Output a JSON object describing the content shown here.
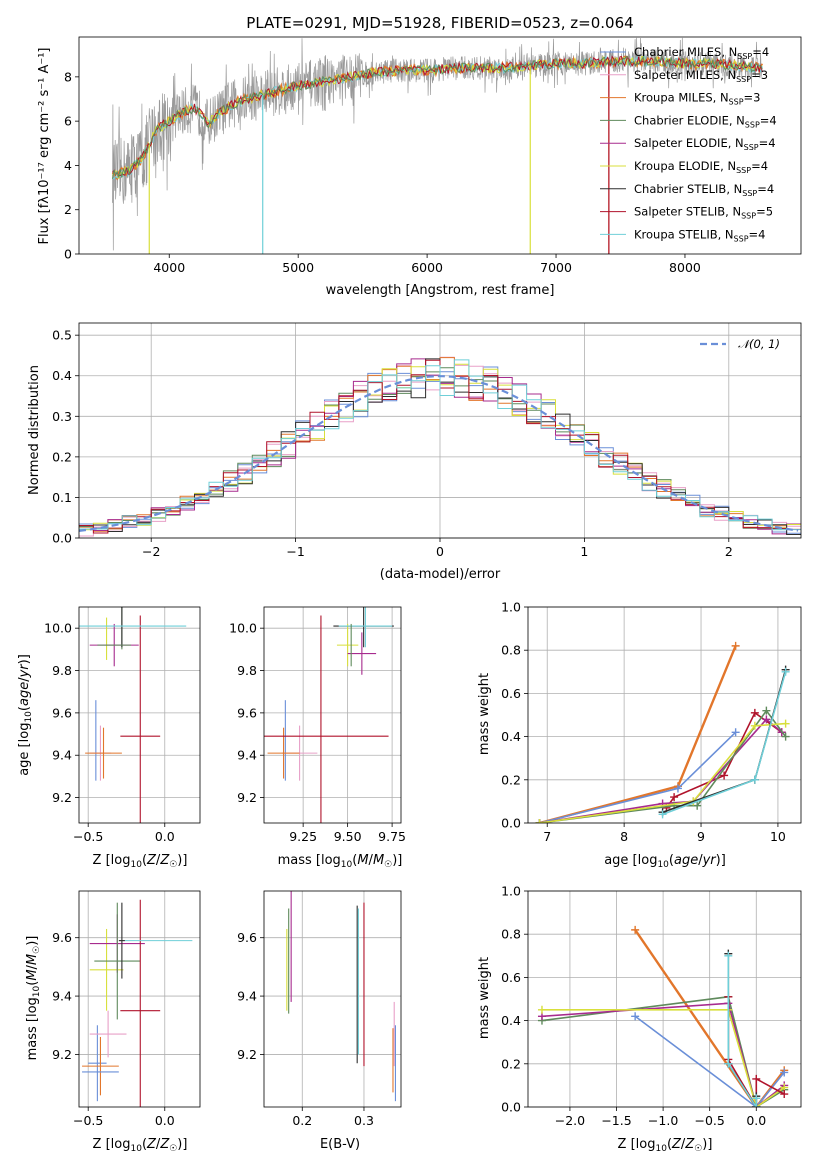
{
  "colors": [
    "#6a8fd8",
    "#e2762b",
    "#5f8a5c",
    "#a72b8e",
    "#d8df3b",
    "#2e2e2e",
    "#b0132b",
    "#6fcfd8",
    "#9a9a9a",
    "#e8a0c8"
  ],
  "chart_data": [
    {
      "type": "line",
      "title": "PLATE=0291, MJD=51928, FIBERID=0523, z=0.064",
      "xlabel": "wavelength [Angstrom, rest frame]",
      "ylabel": "Flux [f$_\\lambda$10$^{-17}$ erg cm$^{-2}$ s$^{-1}$ A$^{-1}$]",
      "ylabel_display": "Flux [fλ10⁻¹⁷ erg cm⁻² s⁻¹ A⁻¹]",
      "xlim": [
        3300,
        8900
      ],
      "ylim": [
        0,
        9.8
      ],
      "xticks": [
        4000,
        5000,
        6000,
        7000,
        8000
      ],
      "yticks": [
        0,
        2,
        4,
        6,
        8
      ],
      "grid": false,
      "legend_position": "top-right",
      "series": [
        {
          "name": "Chabrier MILES, N_SSP=4",
          "label_main": "Chabrier MILES, N",
          "label_sub": "SSP",
          "label_end": "=4",
          "color": "#6a8fd8"
        },
        {
          "name": "Salpeter MILES, N_SSP=3",
          "label_main": "Salpeter MILES, N",
          "label_sub": "SSP",
          "label_end": "=3",
          "color": "#e8a0c8"
        },
        {
          "name": "Kroupa MILES, N_SSP=3",
          "label_main": "Kroupa MILES, N",
          "label_sub": "SSP",
          "label_end": "=3",
          "color": "#e2762b"
        },
        {
          "name": "Chabrier ELODIE, N_SSP=4",
          "label_main": "Chabrier ELODIE, N",
          "label_sub": "SSP",
          "label_end": "=4",
          "color": "#5f8a5c"
        },
        {
          "name": "Salpeter ELODIE, N_SSP=4",
          "label_main": "Salpeter ELODIE, N",
          "label_sub": "SSP",
          "label_end": "=4",
          "color": "#a72b8e"
        },
        {
          "name": "Kroupa ELODIE, N_SSP=4",
          "label_main": "Kroupa ELODIE, N",
          "label_sub": "SSP",
          "label_end": "=4",
          "color": "#d8df3b"
        },
        {
          "name": "Chabrier STELIB, N_SSP=4",
          "label_main": "Chabrier STELIB, N",
          "label_sub": "SSP",
          "label_end": "=4",
          "color": "#2e2e2e"
        },
        {
          "name": "Salpeter STELIB, N_SSP=5",
          "label_main": "Salpeter STELIB, N",
          "label_sub": "SSP",
          "label_end": "=5",
          "color": "#b0132b"
        },
        {
          "name": "Kroupa STELIB, N_SSP=4",
          "label_main": "Kroupa STELIB, N",
          "label_sub": "SSP",
          "label_end": "=4",
          "color": "#6fcfd8"
        }
      ],
      "continuum_shape": {
        "x": [
          3600,
          3700,
          3800,
          3900,
          4000,
          4100,
          4200,
          4300,
          4400,
          4500,
          4600,
          4800,
          5000,
          5200,
          5400,
          5600,
          5800,
          6000,
          6200,
          6400,
          6600,
          6800,
          7000,
          7200,
          7400,
          7600,
          7800,
          8000,
          8200,
          8400,
          8600
        ],
        "y": [
          3.6,
          3.8,
          4.4,
          5.6,
          6.0,
          6.4,
          6.6,
          5.9,
          6.4,
          6.8,
          7.0,
          7.3,
          7.6,
          7.8,
          8.0,
          8.2,
          8.3,
          8.3,
          8.4,
          8.4,
          8.4,
          8.5,
          8.6,
          8.6,
          8.7,
          8.7,
          8.7,
          8.6,
          8.6,
          8.5,
          8.4
        ]
      }
    },
    {
      "type": "line",
      "title": "",
      "xlabel": "(data-model)/error",
      "ylabel": "Normed distribution",
      "xlim": [
        -2.5,
        2.5
      ],
      "ylim": [
        0,
        0.53
      ],
      "xticks": [
        -2,
        -1,
        0,
        1,
        2
      ],
      "yticks": [
        0.0,
        0.1,
        0.2,
        0.3,
        0.4,
        0.5
      ],
      "grid": true,
      "legend_position": "top-right",
      "legend": "N(0,1)",
      "legend_display": "𝒩(0, 1)",
      "gaussian": {
        "mean": 0,
        "sigma": 1,
        "color": "#6a8fd8",
        "style": "dashed"
      }
    },
    {
      "type": "scatter",
      "title": "",
      "xlabel": "Z [log10(Z/Z☉)]",
      "ylabel": "age  [log10(age/yr)]",
      "xlim": [
        -0.56,
        0.23
      ],
      "ylim": [
        9.08,
        10.1
      ],
      "xticks": [
        -0.5,
        0.0
      ],
      "yticks": [
        9.2,
        9.4,
        9.6,
        9.8,
        10.0
      ],
      "grid": true,
      "errorbars": [
        {
          "x": -0.45,
          "y": 9.47,
          "xerr": 0,
          "yerr": 0.19,
          "color": "#6a8fd8"
        },
        {
          "x": -0.42,
          "y": 9.41,
          "xerr": 0.07,
          "yerr": 0.13,
          "color": "#e8a0c8"
        },
        {
          "x": -0.4,
          "y": 9.41,
          "xerr": 0.12,
          "yerr": 0.12,
          "color": "#e2762b"
        },
        {
          "x": -0.38,
          "y": 9.95,
          "xerr": 0.0,
          "yerr": 0.1,
          "color": "#d8df3b"
        },
        {
          "x": -0.33,
          "y": 9.92,
          "xerr": 0.16,
          "yerr": 0.1,
          "color": "#a72b8e"
        },
        {
          "x": -0.28,
          "y": 10.0,
          "xerr": 0.0,
          "yerr": 0.1,
          "color": "#5f8a5c"
        },
        {
          "x": -0.28,
          "y": 10.01,
          "xerr": 0.0,
          "yerr": 0.1,
          "color": "#2e2e2e"
        },
        {
          "x": -0.16,
          "y": 9.49,
          "xerr": 0.13,
          "yerr": 0.57,
          "color": "#b0132b"
        },
        {
          "x": -0.26,
          "y": 10.01,
          "xerr": 0.4,
          "yerr": 0.0,
          "color": "#6fcfd8"
        },
        {
          "x": -0.33,
          "y": 9.92,
          "xerr": 0.11,
          "yerr": 0.0,
          "color": "#5f8a5c"
        }
      ]
    },
    {
      "type": "scatter",
      "title": "",
      "xlabel": "mass [log10(M/M☉)]",
      "ylabel": "",
      "xlim": [
        9.03,
        9.8
      ],
      "ylim": [
        9.08,
        10.1
      ],
      "xticks": [
        9.25,
        9.5,
        9.75
      ],
      "yticks": [
        9.2,
        9.4,
        9.6,
        9.8,
        10.0
      ],
      "grid": true,
      "errorbars": [
        {
          "x": 9.15,
          "y": 9.47,
          "xerr": 0,
          "yerr": 0.19,
          "color": "#6a8fd8"
        },
        {
          "x": 9.23,
          "y": 9.41,
          "xerr": 0.1,
          "yerr": 0.13,
          "color": "#e8a0c8"
        },
        {
          "x": 9.14,
          "y": 9.41,
          "xerr": 0.09,
          "yerr": 0.12,
          "color": "#e2762b"
        },
        {
          "x": 9.5,
          "y": 9.92,
          "xerr": 0.06,
          "yerr": 0.1,
          "color": "#d8df3b"
        },
        {
          "x": 9.58,
          "y": 9.88,
          "xerr": 0.08,
          "yerr": 0.1,
          "color": "#a72b8e"
        },
        {
          "x": 9.59,
          "y": 10.01,
          "xerr": 0.17,
          "yerr": 0.1,
          "color": "#2e2e2e"
        },
        {
          "x": 9.35,
          "y": 9.49,
          "xerr": 0.38,
          "yerr": 0.57,
          "color": "#b0132b"
        },
        {
          "x": 9.6,
          "y": 10.01,
          "xerr": 0.15,
          "yerr": 0.1,
          "color": "#6fcfd8"
        },
        {
          "x": 9.52,
          "y": 9.92,
          "xerr": 0.0,
          "yerr": 0.1,
          "color": "#5f8a5c"
        }
      ]
    },
    {
      "type": "line",
      "title": "",
      "xlabel": "age  [log10(age/yr)]",
      "ylabel": "mass weight",
      "xlim": [
        6.75,
        10.3
      ],
      "ylim": [
        0,
        1.0
      ],
      "xticks": [
        7,
        8,
        9,
        10
      ],
      "yticks": [
        0.0,
        0.2,
        0.4,
        0.6,
        0.8,
        1.0
      ],
      "grid": true,
      "series": [
        {
          "color": "#e2762b",
          "x": [
            6.9,
            8.7,
            9.45
          ],
          "y": [
            0.0,
            0.17,
            0.82
          ]
        },
        {
          "color": "#6a8fd8",
          "x": [
            6.9,
            8.7,
            9.45
          ],
          "y": [
            0.0,
            0.16,
            0.42
          ]
        },
        {
          "color": "#b0132b",
          "x": [
            8.55,
            8.65,
            9.3,
            9.7,
            10.05
          ],
          "y": [
            0.07,
            0.12,
            0.22,
            0.51,
            0.42
          ]
        },
        {
          "color": "#a72b8e",
          "x": [
            6.9,
            8.5,
            8.9,
            9.85,
            10.05
          ],
          "y": [
            0.0,
            0.09,
            0.1,
            0.48,
            0.42
          ]
        },
        {
          "color": "#5f8a5c",
          "x": [
            6.9,
            8.65,
            8.95,
            9.85,
            10.1
          ],
          "y": [
            0.0,
            0.08,
            0.08,
            0.52,
            0.4
          ]
        },
        {
          "color": "#d8df3b",
          "x": [
            6.9,
            8.9,
            9.7,
            10.1
          ],
          "y": [
            0.0,
            0.1,
            0.45,
            0.46
          ]
        },
        {
          "color": "#2e2e2e",
          "x": [
            8.5,
            9.7,
            10.1
          ],
          "y": [
            0.05,
            0.2,
            0.71
          ]
        },
        {
          "color": "#6fcfd8",
          "x": [
            8.5,
            9.7,
            10.1
          ],
          "y": [
            0.04,
            0.2,
            0.7
          ]
        }
      ]
    },
    {
      "type": "scatter",
      "title": "",
      "xlabel": "Z [log10(Z/Z☉)]",
      "ylabel": "mass [log10(M/M☉)]",
      "xlim": [
        -0.56,
        0.23
      ],
      "ylim": [
        9.02,
        9.76
      ],
      "xticks": [
        -0.5,
        0.0
      ],
      "yticks": [
        9.2,
        9.4,
        9.6
      ],
      "grid": true,
      "errorbars": [
        {
          "x": -0.44,
          "y": 9.17,
          "xerr": 0.06,
          "yerr": 0.13,
          "color": "#6a8fd8"
        },
        {
          "x": -0.37,
          "y": 9.27,
          "xerr": 0.12,
          "yerr": 0.08,
          "color": "#e8a0c8"
        },
        {
          "x": -0.42,
          "y": 9.16,
          "xerr": 0.12,
          "yerr": 0.1,
          "color": "#e2762b"
        },
        {
          "x": -0.38,
          "y": 9.49,
          "xerr": 0.11,
          "yerr": 0.14,
          "color": "#d8df3b"
        },
        {
          "x": -0.31,
          "y": 9.58,
          "xerr": 0.18,
          "yerr": 0.1,
          "color": "#a72b8e"
        },
        {
          "x": -0.31,
          "y": 9.52,
          "xerr": 0.15,
          "yerr": 0.2,
          "color": "#5f8a5c"
        },
        {
          "x": -0.28,
          "y": 9.59,
          "xerr": 0.02,
          "yerr": 0.13,
          "color": "#2e2e2e"
        },
        {
          "x": -0.16,
          "y": 9.35,
          "xerr": 0.13,
          "yerr": 0.38,
          "color": "#b0132b"
        },
        {
          "x": -0.04,
          "y": 9.59,
          "xerr": 0.22,
          "yerr": 0.0,
          "color": "#6fcfd8"
        },
        {
          "x": -0.42,
          "y": 9.14,
          "xerr": 0.12,
          "yerr": 0.0,
          "color": "#6a8fd8"
        }
      ]
    },
    {
      "type": "scatter",
      "title": "",
      "xlabel": "E(B-V)",
      "ylabel": "",
      "xlim": [
        0.138,
        0.36
      ],
      "ylim": [
        9.02,
        9.76
      ],
      "xticks": [
        0.2,
        0.3
      ],
      "yticks": [
        9.2,
        9.4,
        9.6
      ],
      "grid": true,
      "errorbars": [
        {
          "x": 0.175,
          "y": 9.49,
          "yerr": 0.14,
          "color": "#d8df3b"
        },
        {
          "x": 0.178,
          "y": 9.52,
          "yerr": 0.18,
          "color": "#5f8a5c"
        },
        {
          "x": 0.182,
          "y": 9.58,
          "yerr": 0.2,
          "color": "#a72b8e"
        },
        {
          "x": 0.289,
          "y": 9.44,
          "yerr": 0.27,
          "color": "#2e2e2e"
        },
        {
          "x": 0.291,
          "y": 9.45,
          "yerr": 0.25,
          "color": "#6fcfd8"
        },
        {
          "x": 0.3,
          "y": 9.44,
          "yerr": 0.28,
          "color": "#b0132b"
        },
        {
          "x": 0.347,
          "y": 9.18,
          "yerr": 0.11,
          "color": "#e2762b"
        },
        {
          "x": 0.349,
          "y": 9.27,
          "yerr": 0.11,
          "color": "#e8a0c8"
        },
        {
          "x": 0.351,
          "y": 9.17,
          "yerr": 0.13,
          "color": "#6a8fd8"
        }
      ]
    },
    {
      "type": "line",
      "title": "",
      "xlabel": "Z [log10(Z/Z☉)]",
      "ylabel": "mass weight",
      "xlim": [
        -2.45,
        0.48
      ],
      "ylim": [
        0,
        1.0
      ],
      "xticks": [
        -2.0,
        -1.5,
        -1.0,
        -0.5,
        0.0
      ],
      "yticks": [
        0.0,
        0.2,
        0.4,
        0.6,
        0.8,
        1.0
      ],
      "grid": true,
      "series": [
        {
          "color": "#e2762b",
          "x": [
            -1.3,
            0.0,
            0.3
          ],
          "y": [
            0.82,
            0.0,
            0.17
          ]
        },
        {
          "color": "#6a8fd8",
          "x": [
            -1.3,
            0.0,
            0.3
          ],
          "y": [
            0.42,
            0.0,
            0.16
          ]
        },
        {
          "color": "#5f8a5c",
          "x": [
            -2.3,
            -0.3,
            0.0,
            0.3
          ],
          "y": [
            0.4,
            0.51,
            0.0,
            0.08
          ]
        },
        {
          "color": "#a72b8e",
          "x": [
            -2.3,
            -0.3,
            0.0,
            0.3
          ],
          "y": [
            0.42,
            0.48,
            0.0,
            0.1
          ]
        },
        {
          "color": "#d8df3b",
          "x": [
            -2.3,
            -0.3,
            0.0,
            0.3
          ],
          "y": [
            0.45,
            0.45,
            0.0,
            0.09
          ]
        },
        {
          "color": "#b0132b",
          "x": [
            -0.3,
            -0.3,
            0.0,
            0.0,
            0.3
          ],
          "y": [
            0.51,
            0.22,
            0.0,
            0.13,
            0.06
          ]
        },
        {
          "color": "#2e2e2e",
          "x": [
            -0.3,
            -0.3,
            0.0,
            0.0
          ],
          "y": [
            0.71,
            0.2,
            0.0,
            0.05
          ]
        },
        {
          "color": "#6fcfd8",
          "x": [
            -0.3,
            -0.3,
            0.0,
            0.0
          ],
          "y": [
            0.7,
            0.2,
            0.0,
            0.04
          ]
        }
      ]
    }
  ]
}
